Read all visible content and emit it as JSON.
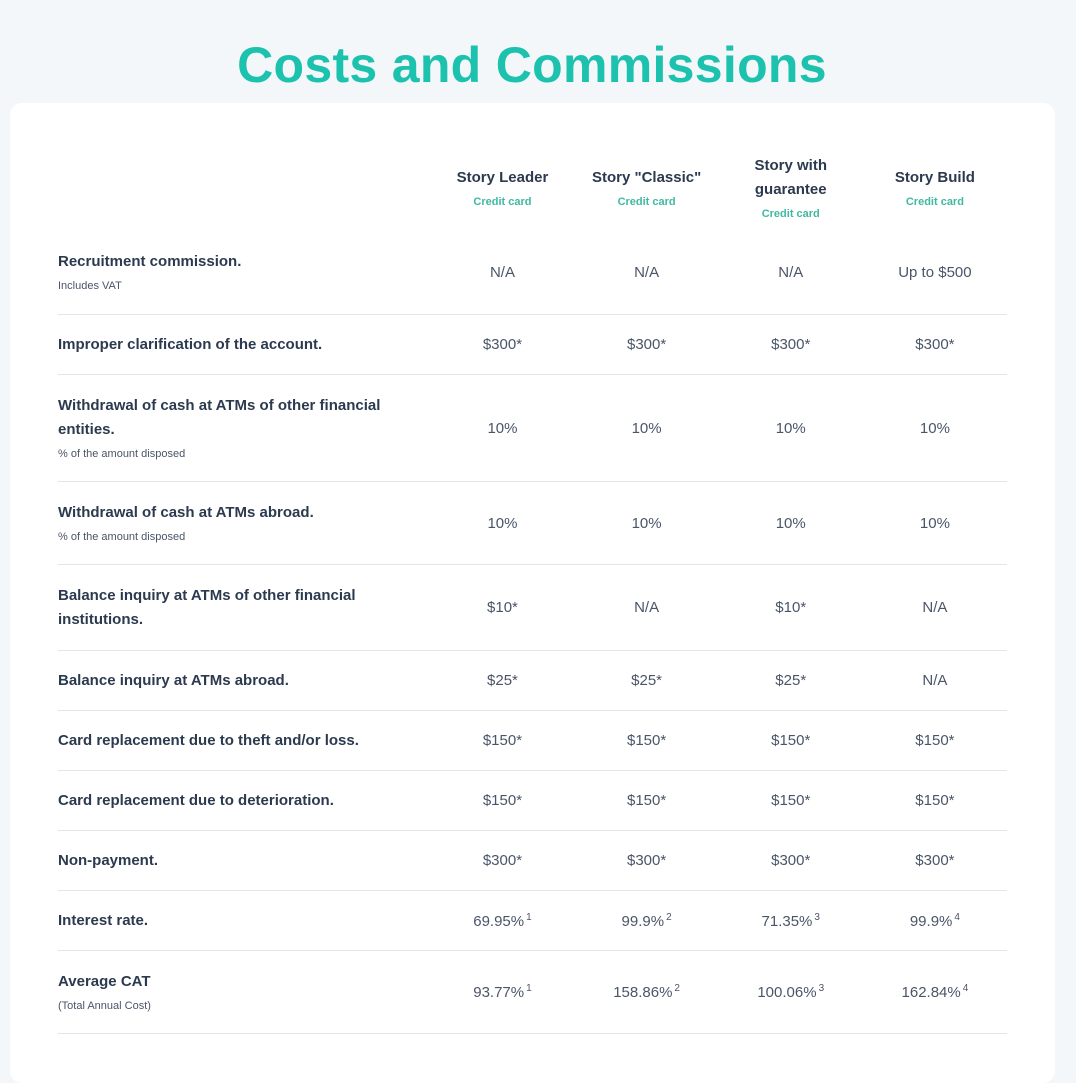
{
  "page": {
    "title": "Costs and Commissions"
  },
  "plans": [
    {
      "name": "Story Leader",
      "type": "Credit card"
    },
    {
      "name": "Story \"Classic\"",
      "type": "Credit card"
    },
    {
      "name": "Story with guarantee",
      "type": "Credit card"
    },
    {
      "name": "Story Build",
      "type": "Credit card"
    }
  ],
  "rows": [
    {
      "label": "Recruitment commission.",
      "note": "Includes VAT",
      "values": [
        {
          "v": "N/A",
          "s": ""
        },
        {
          "v": "N/A",
          "s": ""
        },
        {
          "v": "N/A",
          "s": ""
        },
        {
          "v": "Up to $500",
          "s": ""
        }
      ]
    },
    {
      "label": "Improper clarification of the account.",
      "note": "",
      "values": [
        {
          "v": "$300*",
          "s": ""
        },
        {
          "v": "$300*",
          "s": ""
        },
        {
          "v": "$300*",
          "s": ""
        },
        {
          "v": "$300*",
          "s": ""
        }
      ]
    },
    {
      "label": "Withdrawal of cash at ATMs of other financial entities.",
      "note": "% of the amount disposed",
      "values": [
        {
          "v": "10%",
          "s": ""
        },
        {
          "v": "10%",
          "s": ""
        },
        {
          "v": "10%",
          "s": ""
        },
        {
          "v": "10%",
          "s": ""
        }
      ]
    },
    {
      "label": "Withdrawal of cash at ATMs abroad.",
      "note": "% of the amount disposed",
      "values": [
        {
          "v": "10%",
          "s": ""
        },
        {
          "v": "10%",
          "s": ""
        },
        {
          "v": "10%",
          "s": ""
        },
        {
          "v": "10%",
          "s": ""
        }
      ]
    },
    {
      "label": "Balance inquiry at ATMs of other financial institutions.",
      "note": "",
      "values": [
        {
          "v": "$10*",
          "s": ""
        },
        {
          "v": "N/A",
          "s": ""
        },
        {
          "v": "$10*",
          "s": ""
        },
        {
          "v": "N/A",
          "s": ""
        }
      ]
    },
    {
      "label": "Balance inquiry at ATMs abroad.",
      "note": "",
      "values": [
        {
          "v": "$25*",
          "s": ""
        },
        {
          "v": "$25*",
          "s": ""
        },
        {
          "v": "$25*",
          "s": ""
        },
        {
          "v": "N/A",
          "s": ""
        }
      ]
    },
    {
      "label": "Card replacement due to theft and/or loss.",
      "note": "",
      "values": [
        {
          "v": "$150*",
          "s": ""
        },
        {
          "v": "$150*",
          "s": ""
        },
        {
          "v": "$150*",
          "s": ""
        },
        {
          "v": "$150*",
          "s": ""
        }
      ]
    },
    {
      "label": "Card replacement due to deterioration.",
      "note": "",
      "values": [
        {
          "v": "$150*",
          "s": ""
        },
        {
          "v": "$150*",
          "s": ""
        },
        {
          "v": "$150*",
          "s": ""
        },
        {
          "v": "$150*",
          "s": ""
        }
      ]
    },
    {
      "label": "Non-payment.",
      "note": "",
      "values": [
        {
          "v": "$300*",
          "s": ""
        },
        {
          "v": "$300*",
          "s": ""
        },
        {
          "v": "$300*",
          "s": ""
        },
        {
          "v": "$300*",
          "s": ""
        }
      ]
    },
    {
      "label": "Interest rate.",
      "note": "",
      "values": [
        {
          "v": "69.95%",
          "s": "1"
        },
        {
          "v": "99.9%",
          "s": "2"
        },
        {
          "v": "71.35%",
          "s": "3"
        },
        {
          "v": "99.9%",
          "s": "4"
        }
      ]
    },
    {
      "label": "Average CAT",
      "note": "(Total Annual Cost)",
      "values": [
        {
          "v": "93.77%",
          "s": "1"
        },
        {
          "v": "158.86%",
          "s": "2"
        },
        {
          "v": "100.06%",
          "s": "3"
        },
        {
          "v": "162.84%",
          "s": "4"
        }
      ]
    }
  ]
}
